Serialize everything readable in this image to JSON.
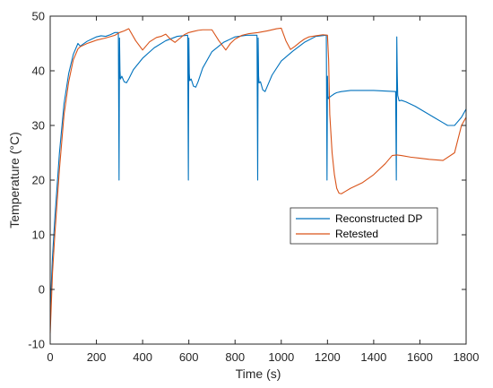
{
  "chart_data": {
    "type": "line",
    "title": "",
    "xlabel": "Time (s)",
    "ylabel": "Temperature (°C)",
    "xlim": [
      0,
      1800
    ],
    "ylim": [
      -10,
      50
    ],
    "xticks": [
      0,
      200,
      400,
      600,
      800,
      1000,
      1200,
      1400,
      1600,
      1800
    ],
    "yticks": [
      -10,
      0,
      10,
      20,
      30,
      40,
      50
    ],
    "grid": false,
    "legend": "center-right",
    "series": [
      {
        "name": "Reconstructed DP",
        "color": "#0072BD",
        "x": [
          0,
          10,
          20,
          40,
          60,
          80,
          100,
          120,
          130,
          140,
          160,
          180,
          200,
          220,
          240,
          260,
          280,
          295,
          298,
          300,
          302,
          304,
          310,
          320,
          330,
          340,
          360,
          400,
          450,
          500,
          550,
          595,
          598,
          600,
          602,
          604,
          610,
          620,
          630,
          640,
          660,
          700,
          750,
          800,
          850,
          895,
          898,
          900,
          902,
          904,
          910,
          920,
          930,
          940,
          960,
          1000,
          1050,
          1100,
          1150,
          1195,
          1198,
          1200,
          1202,
          1204,
          1210,
          1220,
          1230,
          1240,
          1260,
          1300,
          1400,
          1495,
          1498,
          1500,
          1502,
          1504,
          1510,
          1520,
          1540,
          1580,
          1620,
          1660,
          1700,
          1720,
          1750,
          1780,
          1800
        ],
        "y": [
          -4,
          6,
          13,
          25,
          34,
          39.5,
          43,
          45,
          44.5,
          44.8,
          45.4,
          45.8,
          46.2,
          46.4,
          46.3,
          46.6,
          47,
          47,
          20,
          46,
          40,
          38.5,
          39,
          38,
          37.8,
          38.5,
          40.2,
          42.3,
          44.2,
          45.5,
          46.3,
          46.5,
          20,
          46,
          39.5,
          38.2,
          38.5,
          37.2,
          37,
          38,
          40.5,
          43.5,
          45.2,
          46.2,
          46.5,
          46.5,
          20,
          46,
          39,
          37.8,
          38,
          36.5,
          36.2,
          37.2,
          39.2,
          41.8,
          43.6,
          45.2,
          46.3,
          46.5,
          20,
          39,
          35.5,
          34.9,
          35.2,
          35.5,
          35.8,
          36,
          36.2,
          36.4,
          36.4,
          36.2,
          20,
          46.2,
          39.5,
          35.5,
          34.5,
          34.6,
          34.3,
          33.5,
          32.5,
          31.5,
          30.5,
          30,
          30,
          31.5,
          33
        ]
      },
      {
        "name": "Retested",
        "color": "#D95319",
        "x": [
          0,
          10,
          20,
          40,
          60,
          80,
          100,
          120,
          130,
          140,
          160,
          180,
          200,
          240,
          280,
          300,
          320,
          340,
          370,
          400,
          430,
          460,
          480,
          500,
          520,
          540,
          560,
          580,
          600,
          620,
          640,
          660,
          700,
          730,
          760,
          780,
          800,
          830,
          860,
          900,
          940,
          980,
          1000,
          1020,
          1040,
          1060,
          1080,
          1100,
          1120,
          1150,
          1180,
          1200,
          1205,
          1210,
          1220,
          1230,
          1240,
          1250,
          1260,
          1280,
          1300,
          1350,
          1400,
          1450,
          1480,
          1500,
          1520,
          1560,
          1600,
          1640,
          1700,
          1750,
          1780,
          1800
        ],
        "y": [
          -8,
          3,
          10,
          22,
          32,
          38,
          42,
          44,
          44.4,
          44.6,
          45,
          45.3,
          45.6,
          46,
          46.5,
          47,
          47.3,
          47.7,
          45.5,
          43.8,
          45.3,
          46.1,
          46.3,
          46.7,
          45.8,
          45.2,
          45.9,
          46.6,
          47,
          47.2,
          47.4,
          47.5,
          47.5,
          45.5,
          43.8,
          45,
          45.8,
          46.5,
          46.8,
          47,
          47.3,
          47.7,
          47.8,
          45.5,
          43.9,
          44.5,
          45.2,
          45.8,
          46.2,
          46.4,
          46.6,
          46.5,
          42,
          32,
          25,
          21,
          18.5,
          17.6,
          17.5,
          18,
          18.5,
          19.5,
          21,
          23,
          24.5,
          24.6,
          24.5,
          24.2,
          24,
          23.8,
          23.6,
          25,
          30,
          31.5
        ]
      }
    ]
  }
}
